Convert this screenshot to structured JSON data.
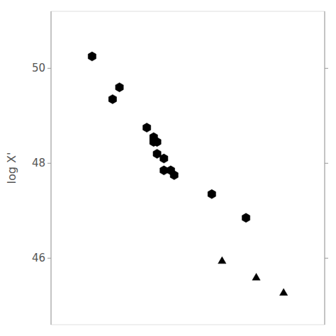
{
  "chart_data": {
    "type": "scatter",
    "y_label": "log X'",
    "series": [
      {
        "marker": "hexagon",
        "color": "#000000",
        "x": [
          0.22,
          0.3,
          0.28,
          0.38,
          0.4,
          0.4,
          0.41,
          0.41,
          0.43,
          0.43,
          0.45,
          0.46,
          0.57,
          0.67
        ],
        "values": [
          50.25,
          49.6,
          49.35,
          48.75,
          48.55,
          48.45,
          48.45,
          48.2,
          48.1,
          47.85,
          47.85,
          47.75,
          47.35,
          46.85
        ]
      },
      {
        "marker": "triangle",
        "color": "#000000",
        "x": [
          0.6,
          0.7,
          0.78
        ],
        "values": [
          45.95,
          45.6,
          45.28
        ]
      }
    ],
    "xlim": [
      0.1,
      0.9
    ],
    "ylim": [
      44.6,
      51.2
    ],
    "yticks": [
      46,
      48,
      50
    ],
    "tick_labels": "y",
    "grid": false
  }
}
